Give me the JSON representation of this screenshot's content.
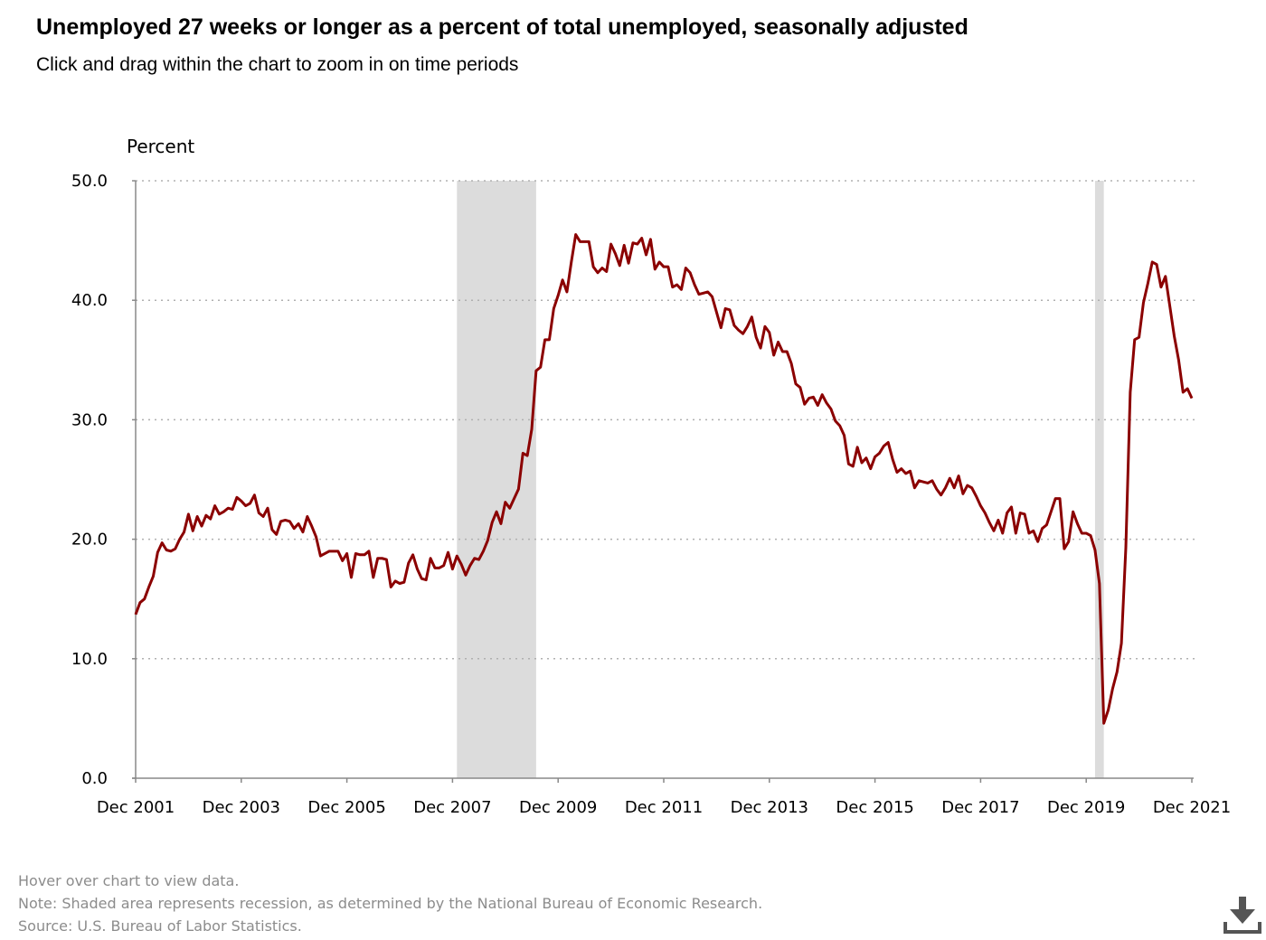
{
  "header": {
    "title": "Unemployed 27 weeks or longer as a percent of total unemployed, seasonally adjusted",
    "subtitle": "Click and drag within the chart to zoom in on time periods"
  },
  "notes": {
    "hover": "Hover over chart to view data.",
    "note": "Note: Shaded area represents recession, as determined by the National Bureau of Economic Research.",
    "source": "Source: U.S. Bureau of Labor Statistics."
  },
  "download_icon": "download-icon",
  "colors": {
    "line": "#8b0000",
    "recession": "#dcdcdc",
    "grid": "#b0b0b0",
    "axis": "#888888"
  },
  "chart_data": {
    "type": "line",
    "title": "Unemployed 27 weeks or longer as a percent of total unemployed, seasonally adjusted",
    "ylabel": "Percent",
    "xlabel": "",
    "ylim": [
      0,
      50
    ],
    "yticks": [
      "0.0",
      "10.0",
      "20.0",
      "30.0",
      "40.0",
      "50.0"
    ],
    "ytick_values": [
      0,
      10,
      20,
      30,
      40,
      50
    ],
    "xticks": [
      "Dec 2001",
      "Dec 2003",
      "Dec 2005",
      "Dec 2007",
      "Dec 2009",
      "Dec 2011",
      "Dec 2013",
      "Dec 2015",
      "Dec 2017",
      "Dec 2019",
      "Dec 2021"
    ],
    "xtick_index": [
      0,
      24,
      48,
      72,
      96,
      120,
      144,
      168,
      192,
      216,
      240
    ],
    "grid": true,
    "recessions": [
      {
        "start": 73,
        "end": 91
      },
      {
        "start": 218,
        "end": 220
      }
    ],
    "start_period": "Dec 2001",
    "end_period": "Dec 2021",
    "series": [
      {
        "name": "Unemployed 27 weeks or longer as a percent of total unemployed",
        "values": [
          13.7,
          14.7,
          15.0,
          16.0,
          16.9,
          18.9,
          19.7,
          19.1,
          19.0,
          19.2,
          20.0,
          20.6,
          22.1,
          20.7,
          21.9,
          21.1,
          22.0,
          21.7,
          22.8,
          22.1,
          22.3,
          22.6,
          22.5,
          23.5,
          23.2,
          22.8,
          23.0,
          23.7,
          22.2,
          21.9,
          22.6,
          20.8,
          20.4,
          21.5,
          21.6,
          21.5,
          20.9,
          21.3,
          20.6,
          21.9,
          21.1,
          20.2,
          18.6,
          18.8,
          19.0,
          19.0,
          19.0,
          18.2,
          18.8,
          16.8,
          18.8,
          18.7,
          18.7,
          19.0,
          16.8,
          18.4,
          18.4,
          18.3,
          16.0,
          16.5,
          16.3,
          16.4,
          18.0,
          18.7,
          17.5,
          16.7,
          16.6,
          18.4,
          17.6,
          17.6,
          17.8,
          18.9,
          17.5,
          18.6,
          17.9,
          17.0,
          17.8,
          18.4,
          18.3,
          19.0,
          19.9,
          21.4,
          22.3,
          21.3,
          23.1,
          22.6,
          23.4,
          24.2,
          27.2,
          27.0,
          29.2,
          34.1,
          34.4,
          36.7,
          36.7,
          39.3,
          40.4,
          41.7,
          40.7,
          43.2,
          45.5,
          44.9,
          44.9,
          44.9,
          42.8,
          42.3,
          42.7,
          42.4,
          44.7,
          43.9,
          42.9,
          44.6,
          43.1,
          44.8,
          44.7,
          45.2,
          43.8,
          45.1,
          42.6,
          43.2,
          42.8,
          42.8,
          41.1,
          41.3,
          40.9,
          42.7,
          42.3,
          41.3,
          40.5,
          40.6,
          40.7,
          40.3,
          39.0,
          37.7,
          39.3,
          39.2,
          37.9,
          37.5,
          37.2,
          37.8,
          38.6,
          36.9,
          36.0,
          37.8,
          37.3,
          35.4,
          36.5,
          35.7,
          35.7,
          34.7,
          33.0,
          32.7,
          31.3,
          31.8,
          31.9,
          31.2,
          32.1,
          31.4,
          30.9,
          29.9,
          29.5,
          28.7,
          26.3,
          26.1,
          27.7,
          26.4,
          26.8,
          25.9,
          26.9,
          27.2,
          27.8,
          28.1,
          26.7,
          25.6,
          25.9,
          25.5,
          25.7,
          24.3,
          24.9,
          24.8,
          24.7,
          24.9,
          24.2,
          23.7,
          24.3,
          25.1,
          24.3,
          25.3,
          23.8,
          24.5,
          24.3,
          23.6,
          22.8,
          22.2,
          21.4,
          20.7,
          21.6,
          20.5,
          22.2,
          22.7,
          20.5,
          22.2,
          22.1,
          20.5,
          20.7,
          19.8,
          20.9,
          21.2,
          22.3,
          23.4,
          23.4,
          19.2,
          19.8,
          22.3,
          21.3,
          20.5,
          20.5,
          20.3,
          19.1,
          16.3,
          4.6,
          5.7,
          7.5,
          8.9,
          11.3,
          19.3,
          32.3,
          36.7,
          36.9,
          39.8,
          41.4,
          43.2,
          43.0,
          41.1,
          42.0,
          39.5,
          37.0,
          35.0,
          32.3,
          32.6,
          31.8
        ]
      }
    ]
  }
}
